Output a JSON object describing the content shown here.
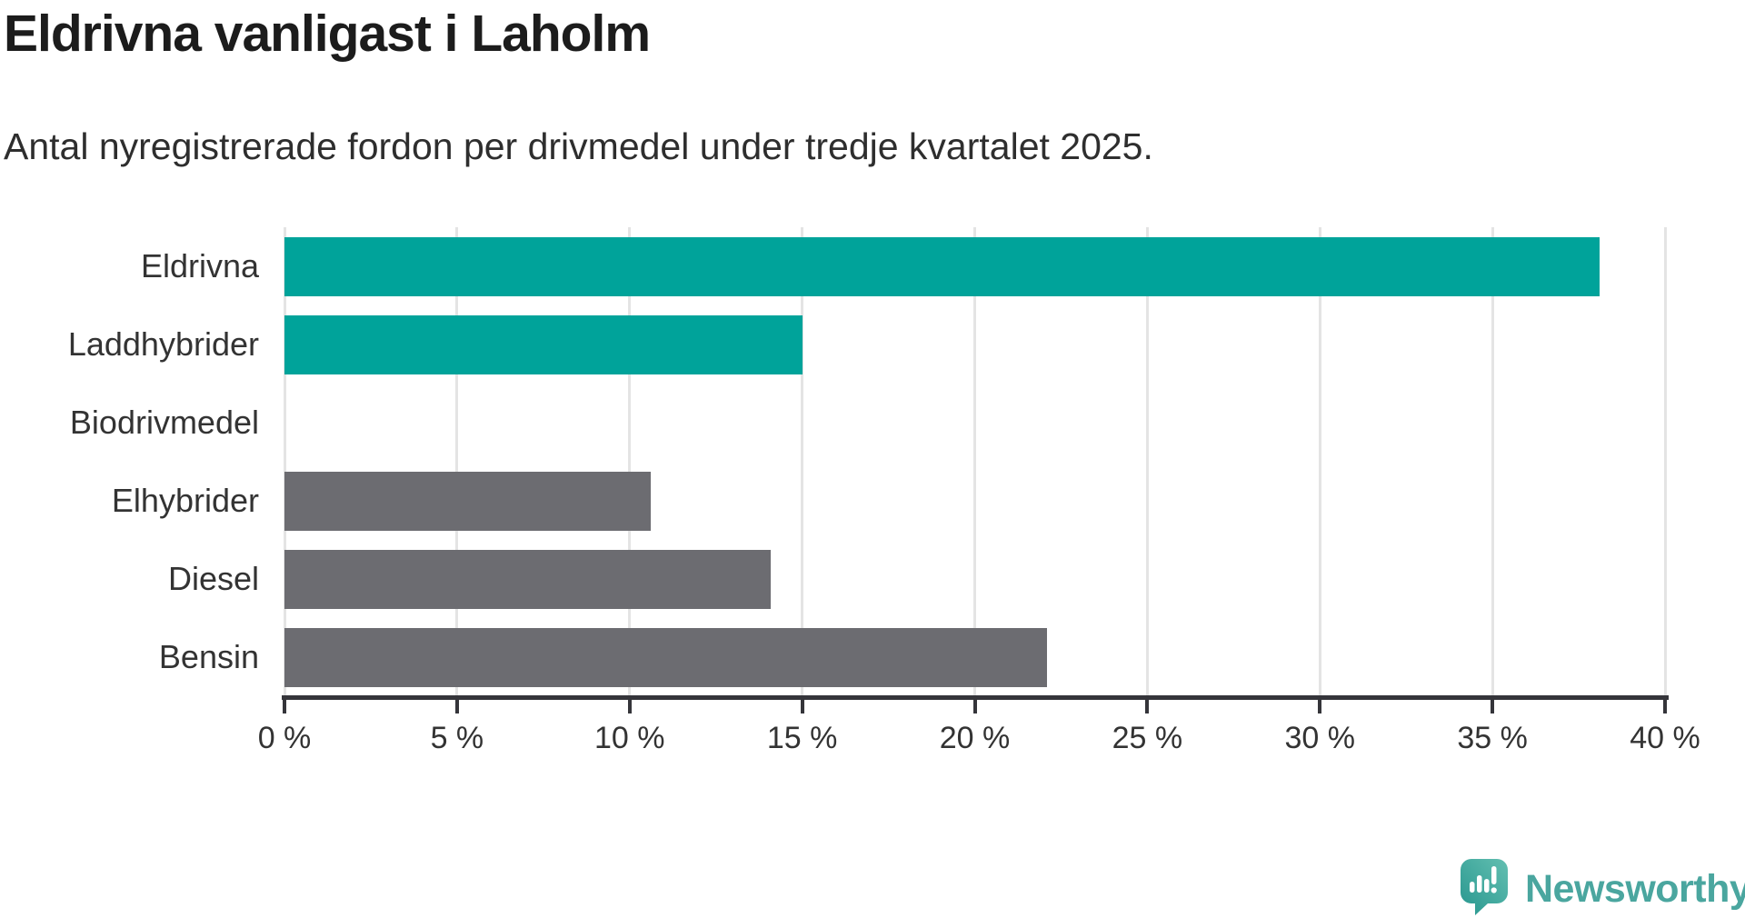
{
  "header": {
    "title": "Eldrivna vanligast i Laholm",
    "subtitle": "Antal nyregistrerade fordon per drivmedel under tredje kvartalet 2025."
  },
  "chart_data": {
    "type": "bar",
    "orientation": "horizontal",
    "title": "Eldrivna vanligast i Laholm",
    "subtitle": "Antal nyregistrerade fordon per drivmedel under tredje kvartalet 2025.",
    "categories": [
      "Eldrivna",
      "Laddhybrider",
      "Biodrivmedel",
      "Elhybrider",
      "Diesel",
      "Bensin"
    ],
    "values": [
      38.1,
      15.0,
      0,
      10.6,
      14.1,
      22.1
    ],
    "unit": "%",
    "xlabel": "",
    "ylabel": "",
    "xlim": [
      0,
      40
    ],
    "x_ticks": [
      0,
      5,
      10,
      15,
      20,
      25,
      30,
      35,
      40
    ],
    "x_tick_labels": [
      "0 %",
      "5 %",
      "10 %",
      "15 %",
      "20 %",
      "25 %",
      "30 %",
      "35 %",
      "40 %"
    ],
    "grid": true,
    "legend": "none",
    "bar_color_keys": [
      "accent",
      "accent",
      "neutral",
      "neutral",
      "neutral",
      "neutral"
    ]
  },
  "colors": {
    "accent": "#00a39a",
    "neutral": "#6c6c71",
    "gridline": "#e4e4e4",
    "axis": "#35353a",
    "title_text": "#1c1c1c",
    "body_text": "#333333",
    "brand_teal": "#4aa69f",
    "logo_gradient_light": "#63bfb1",
    "logo_gradient_dark": "#27968e"
  },
  "footer": {
    "brand": "Newsworthy",
    "logo_icon": "newsworthy-speech-bubble-bar-chart-icon"
  }
}
